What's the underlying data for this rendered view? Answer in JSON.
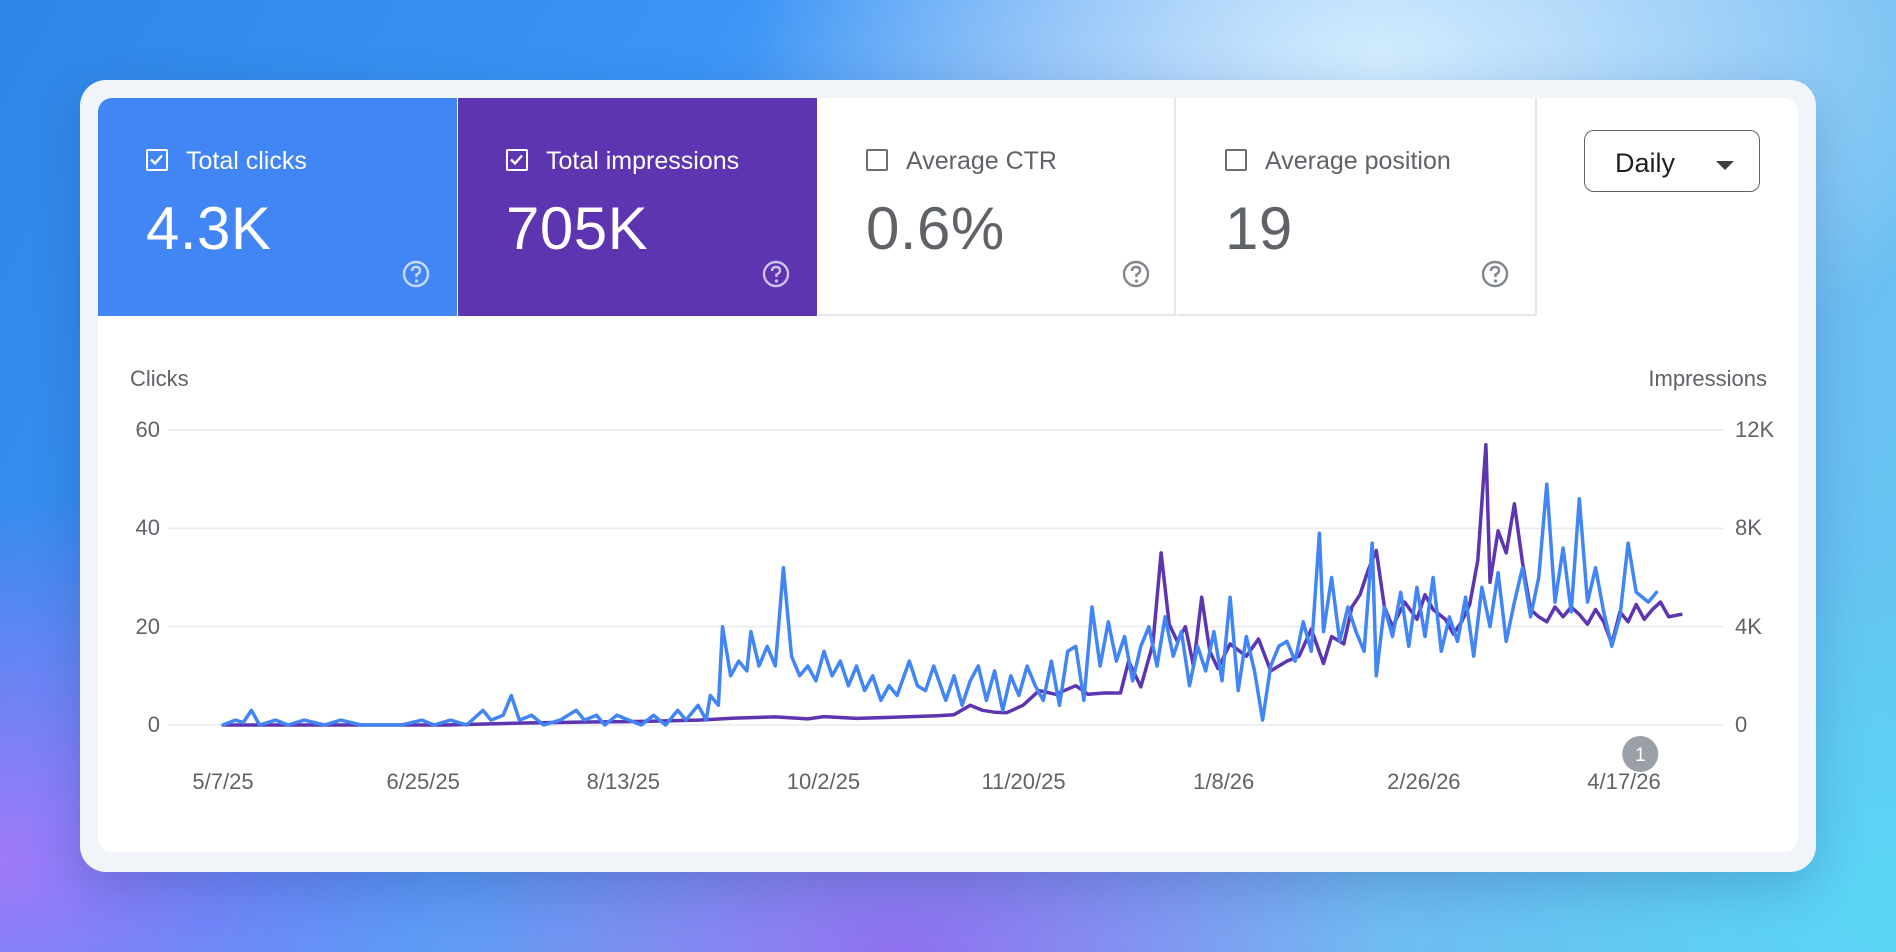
{
  "colors": {
    "clicks": "#4285f4",
    "impressions": "#5e35b1",
    "grid": "#e8eaed",
    "annotation": "#9aa0a6"
  },
  "metrics": [
    {
      "label": "Total clicks",
      "value": "4.3K",
      "checked": true,
      "icon": "help-circle-icon"
    },
    {
      "label": "Total impressions",
      "value": "705K",
      "checked": true,
      "icon": "help-circle-icon"
    },
    {
      "label": "Average CTR",
      "value": "0.6%",
      "checked": false,
      "icon": "help-circle-icon"
    },
    {
      "label": "Average position",
      "value": "19",
      "checked": false,
      "icon": "help-circle-icon"
    }
  ],
  "granularity": {
    "selected": "Daily",
    "icon": "caret-down-icon"
  },
  "chart_data": {
    "type": "line",
    "left_axis": {
      "title": "Clicks",
      "range": [
        0,
        60
      ],
      "ticks": [
        "0",
        "20",
        "40",
        "60"
      ]
    },
    "right_axis": {
      "title": "Impressions",
      "range": [
        0,
        12000
      ],
      "ticks": [
        "0",
        "4K",
        "8K",
        "12K"
      ]
    },
    "x_ticks": [
      "5/7/25",
      "6/25/25",
      "8/13/25",
      "10/2/25",
      "11/20/25",
      "1/8/26",
      "2/26/26",
      "4/17/26"
    ],
    "x_range": [
      "2025-05-07",
      "2026-05-01"
    ],
    "grid": true,
    "annotation": {
      "label": "1",
      "date": "2026-04-21"
    },
    "series": [
      {
        "axis": "left",
        "color": "#4285f4",
        "points": [
          [
            "2025-05-07",
            0
          ],
          [
            "2025-05-10",
            1
          ],
          [
            "2025-05-12",
            0.5
          ],
          [
            "2025-05-14",
            3
          ],
          [
            "2025-05-16",
            0
          ],
          [
            "2025-05-20",
            1
          ],
          [
            "2025-05-23",
            0
          ],
          [
            "2025-05-27",
            1
          ],
          [
            "2025-06-01",
            0
          ],
          [
            "2025-06-05",
            1
          ],
          [
            "2025-06-10",
            0
          ],
          [
            "2025-06-20",
            0
          ],
          [
            "2025-06-25",
            1
          ],
          [
            "2025-06-28",
            0
          ],
          [
            "2025-07-02",
            1
          ],
          [
            "2025-07-06",
            0
          ],
          [
            "2025-07-10",
            3
          ],
          [
            "2025-07-12",
            1
          ],
          [
            "2025-07-15",
            2
          ],
          [
            "2025-07-17",
            6
          ],
          [
            "2025-07-19",
            1
          ],
          [
            "2025-07-22",
            2
          ],
          [
            "2025-07-25",
            0
          ],
          [
            "2025-07-29",
            1
          ],
          [
            "2025-08-02",
            3
          ],
          [
            "2025-08-04",
            1
          ],
          [
            "2025-08-07",
            2
          ],
          [
            "2025-08-09",
            0
          ],
          [
            "2025-08-12",
            2
          ],
          [
            "2025-08-15",
            1
          ],
          [
            "2025-08-18",
            0
          ],
          [
            "2025-08-21",
            2
          ],
          [
            "2025-08-24",
            0
          ],
          [
            "2025-08-27",
            3
          ],
          [
            "2025-08-29",
            1
          ],
          [
            "2025-09-01",
            4
          ],
          [
            "2025-09-03",
            1
          ],
          [
            "2025-09-04",
            6
          ],
          [
            "2025-09-06",
            4
          ],
          [
            "2025-09-07",
            20
          ],
          [
            "2025-09-09",
            10
          ],
          [
            "2025-09-11",
            13
          ],
          [
            "2025-09-13",
            11
          ],
          [
            "2025-09-14",
            19
          ],
          [
            "2025-09-16",
            12
          ],
          [
            "2025-09-18",
            16
          ],
          [
            "2025-09-20",
            12
          ],
          [
            "2025-09-22",
            32
          ],
          [
            "2025-09-24",
            14
          ],
          [
            "2025-09-26",
            10
          ],
          [
            "2025-09-28",
            12
          ],
          [
            "2025-09-30",
            9
          ],
          [
            "2025-10-02",
            15
          ],
          [
            "2025-10-04",
            10
          ],
          [
            "2025-10-06",
            13
          ],
          [
            "2025-10-08",
            8
          ],
          [
            "2025-10-10",
            12
          ],
          [
            "2025-10-12",
            7
          ],
          [
            "2025-10-14",
            10
          ],
          [
            "2025-10-16",
            5
          ],
          [
            "2025-10-18",
            8
          ],
          [
            "2025-10-20",
            6
          ],
          [
            "2025-10-23",
            13
          ],
          [
            "2025-10-25",
            8
          ],
          [
            "2025-10-27",
            7
          ],
          [
            "2025-10-29",
            12
          ],
          [
            "2025-11-01",
            5
          ],
          [
            "2025-11-03",
            10
          ],
          [
            "2025-11-05",
            4
          ],
          [
            "2025-11-07",
            9
          ],
          [
            "2025-11-09",
            12
          ],
          [
            "2025-11-11",
            5
          ],
          [
            "2025-11-13",
            11
          ],
          [
            "2025-11-15",
            3
          ],
          [
            "2025-11-17",
            10
          ],
          [
            "2025-11-19",
            6
          ],
          [
            "2025-11-21",
            12
          ],
          [
            "2025-11-23",
            8
          ],
          [
            "2025-11-25",
            5
          ],
          [
            "2025-11-27",
            13
          ],
          [
            "2025-11-29",
            4
          ],
          [
            "2025-12-01",
            15
          ],
          [
            "2025-12-03",
            16
          ],
          [
            "2025-12-05",
            5
          ],
          [
            "2025-12-07",
            24
          ],
          [
            "2025-12-09",
            12
          ],
          [
            "2025-12-11",
            21
          ],
          [
            "2025-12-13",
            13
          ],
          [
            "2025-12-15",
            18
          ],
          [
            "2025-12-17",
            9
          ],
          [
            "2025-12-19",
            16
          ],
          [
            "2025-12-21",
            20
          ],
          [
            "2025-12-23",
            12
          ],
          [
            "2025-12-25",
            22
          ],
          [
            "2025-12-27",
            14
          ],
          [
            "2025-12-29",
            19
          ],
          [
            "2025-12-31",
            8
          ],
          [
            "2026-01-02",
            16
          ],
          [
            "2026-01-04",
            11
          ],
          [
            "2026-01-06",
            19
          ],
          [
            "2026-01-08",
            9
          ],
          [
            "2026-01-10",
            26
          ],
          [
            "2026-01-12",
            7
          ],
          [
            "2026-01-14",
            18
          ],
          [
            "2026-01-16",
            11
          ],
          [
            "2026-01-18",
            1
          ],
          [
            "2026-01-20",
            12
          ],
          [
            "2026-01-22",
            16
          ],
          [
            "2026-01-24",
            17
          ],
          [
            "2026-01-26",
            13
          ],
          [
            "2026-01-28",
            21
          ],
          [
            "2026-01-30",
            15
          ],
          [
            "2026-02-01",
            39
          ],
          [
            "2026-02-02",
            19
          ],
          [
            "2026-02-04",
            30
          ],
          [
            "2026-02-06",
            17
          ],
          [
            "2026-02-08",
            24
          ],
          [
            "2026-02-10",
            19
          ],
          [
            "2026-02-12",
            15
          ],
          [
            "2026-02-14",
            37
          ],
          [
            "2026-02-15",
            10
          ],
          [
            "2026-02-17",
            24
          ],
          [
            "2026-02-19",
            18
          ],
          [
            "2026-02-21",
            27
          ],
          [
            "2026-02-23",
            16
          ],
          [
            "2026-02-25",
            28
          ],
          [
            "2026-02-27",
            18
          ],
          [
            "2026-03-01",
            30
          ],
          [
            "2026-03-03",
            15
          ],
          [
            "2026-03-05",
            22
          ],
          [
            "2026-03-07",
            17
          ],
          [
            "2026-03-09",
            26
          ],
          [
            "2026-03-11",
            14
          ],
          [
            "2026-03-13",
            28
          ],
          [
            "2026-03-15",
            20
          ],
          [
            "2026-03-17",
            31
          ],
          [
            "2026-03-19",
            17
          ],
          [
            "2026-03-21",
            25
          ],
          [
            "2026-03-23",
            32
          ],
          [
            "2026-03-25",
            22
          ],
          [
            "2026-03-27",
            30
          ],
          [
            "2026-03-29",
            49
          ],
          [
            "2026-03-31",
            25
          ],
          [
            "2026-04-02",
            36
          ],
          [
            "2026-04-04",
            23
          ],
          [
            "2026-04-06",
            46
          ],
          [
            "2026-04-08",
            25
          ],
          [
            "2026-04-10",
            32
          ],
          [
            "2026-04-12",
            23
          ],
          [
            "2026-04-14",
            16
          ],
          [
            "2026-04-16",
            22
          ],
          [
            "2026-04-18",
            37
          ],
          [
            "2026-04-20",
            27
          ],
          [
            "2026-04-23",
            25
          ],
          [
            "2026-04-25",
            27
          ]
        ]
      },
      {
        "axis": "right",
        "color": "#5e35b1",
        "points": [
          [
            "2025-05-07",
            0
          ],
          [
            "2025-06-01",
            0
          ],
          [
            "2025-07-01",
            0
          ],
          [
            "2025-07-20",
            80
          ],
          [
            "2025-08-05",
            120
          ],
          [
            "2025-08-20",
            150
          ],
          [
            "2025-09-01",
            200
          ],
          [
            "2025-09-10",
            280
          ],
          [
            "2025-09-20",
            330
          ],
          [
            "2025-09-28",
            250
          ],
          [
            "2025-10-02",
            340
          ],
          [
            "2025-10-10",
            270
          ],
          [
            "2025-10-20",
            320
          ],
          [
            "2025-10-30",
            380
          ],
          [
            "2025-11-03",
            420
          ],
          [
            "2025-11-07",
            800
          ],
          [
            "2025-11-10",
            600
          ],
          [
            "2025-11-13",
            520
          ],
          [
            "2025-11-16",
            500
          ],
          [
            "2025-11-20",
            800
          ],
          [
            "2025-11-24",
            1400
          ],
          [
            "2025-11-28",
            1250
          ],
          [
            "2025-12-03",
            1600
          ],
          [
            "2025-12-06",
            1250
          ],
          [
            "2025-12-10",
            1300
          ],
          [
            "2025-12-14",
            1300
          ],
          [
            "2025-12-16",
            2600
          ],
          [
            "2025-12-19",
            1550
          ],
          [
            "2025-12-22",
            3300
          ],
          [
            "2025-12-24",
            7000
          ],
          [
            "2025-12-26",
            4100
          ],
          [
            "2025-12-28",
            3400
          ],
          [
            "2025-12-30",
            4000
          ],
          [
            "2026-01-01",
            2400
          ],
          [
            "2026-01-03",
            5200
          ],
          [
            "2026-01-05",
            3000
          ],
          [
            "2026-01-07",
            2300
          ],
          [
            "2026-01-10",
            3300
          ],
          [
            "2026-01-14",
            2800
          ],
          [
            "2026-01-17",
            3500
          ],
          [
            "2026-01-20",
            2200
          ],
          [
            "2026-01-24",
            2600
          ],
          [
            "2026-01-27",
            2800
          ],
          [
            "2026-01-30",
            3900
          ],
          [
            "2026-02-02",
            2500
          ],
          [
            "2026-02-04",
            3600
          ],
          [
            "2026-02-07",
            3300
          ],
          [
            "2026-02-09",
            4800
          ],
          [
            "2026-02-11",
            5300
          ],
          [
            "2026-02-13",
            6300
          ],
          [
            "2026-02-15",
            7100
          ],
          [
            "2026-02-17",
            4800
          ],
          [
            "2026-02-19",
            4000
          ],
          [
            "2026-02-22",
            5000
          ],
          [
            "2026-02-25",
            4300
          ],
          [
            "2026-02-27",
            5300
          ],
          [
            "2026-03-01",
            4700
          ],
          [
            "2026-03-04",
            4300
          ],
          [
            "2026-03-06",
            3700
          ],
          [
            "2026-03-08",
            4200
          ],
          [
            "2026-03-10",
            4900
          ],
          [
            "2026-03-12",
            6700
          ],
          [
            "2026-03-14",
            11400
          ],
          [
            "2026-03-15",
            5800
          ],
          [
            "2026-03-17",
            7900
          ],
          [
            "2026-03-19",
            7000
          ],
          [
            "2026-03-21",
            9000
          ],
          [
            "2026-03-23",
            6600
          ],
          [
            "2026-03-25",
            4700
          ],
          [
            "2026-03-27",
            4400
          ],
          [
            "2026-03-29",
            4200
          ],
          [
            "2026-03-31",
            4800
          ],
          [
            "2026-04-02",
            4400
          ],
          [
            "2026-04-04",
            4800
          ],
          [
            "2026-04-06",
            4500
          ],
          [
            "2026-04-08",
            4100
          ],
          [
            "2026-04-10",
            4700
          ],
          [
            "2026-04-12",
            4200
          ],
          [
            "2026-04-14",
            3300
          ],
          [
            "2026-04-16",
            4600
          ],
          [
            "2026-04-18",
            4200
          ],
          [
            "2026-04-20",
            4900
          ],
          [
            "2026-04-22",
            4300
          ],
          [
            "2026-04-24",
            4700
          ],
          [
            "2026-04-26",
            5000
          ],
          [
            "2026-04-28",
            4400
          ],
          [
            "2026-05-01",
            4500
          ]
        ]
      }
    ]
  }
}
